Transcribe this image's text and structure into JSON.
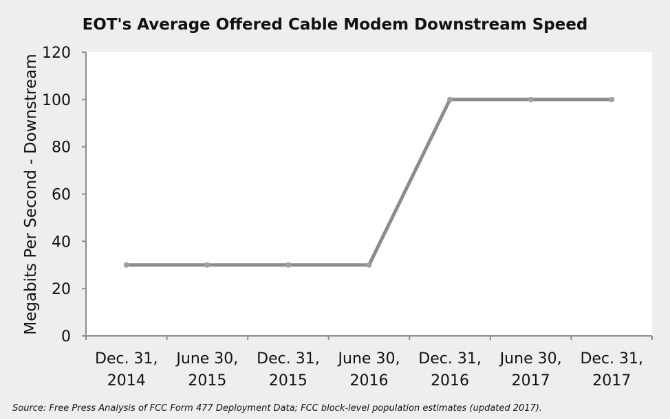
{
  "chart_data": {
    "type": "line",
    "title": "EOT's Average Offered Cable Modem Downstream Speed",
    "ylabel": "Megabits Per Second - Downstream",
    "xlabel": "",
    "categories": [
      [
        "Dec. 31,",
        "2014"
      ],
      [
        "June 30,",
        "2015"
      ],
      [
        "Dec. 31,",
        "2015"
      ],
      [
        "June 30,",
        "2016"
      ],
      [
        "Dec. 31,",
        "2016"
      ],
      [
        "June 30,",
        "2017"
      ],
      [
        "Dec. 31,",
        "2017"
      ]
    ],
    "series": [
      {
        "values": [
          30,
          30,
          30,
          30,
          100,
          100,
          100
        ],
        "color": "#8c8c8c"
      }
    ],
    "ylim": [
      0,
      120
    ],
    "yticks": [
      "0",
      "20",
      "40",
      "60",
      "80",
      "100",
      "120"
    ],
    "grid": false,
    "legend": "none"
  },
  "source": "Source: Free Press Analysis of FCC Form 477 Deployment Data; FCC block-level population estimates (updated  2017).",
  "colors": {
    "background": "#eeeeee",
    "plot_background": "#ffffff",
    "axis": "#8c8c8c",
    "line": "#8c8c8c"
  }
}
